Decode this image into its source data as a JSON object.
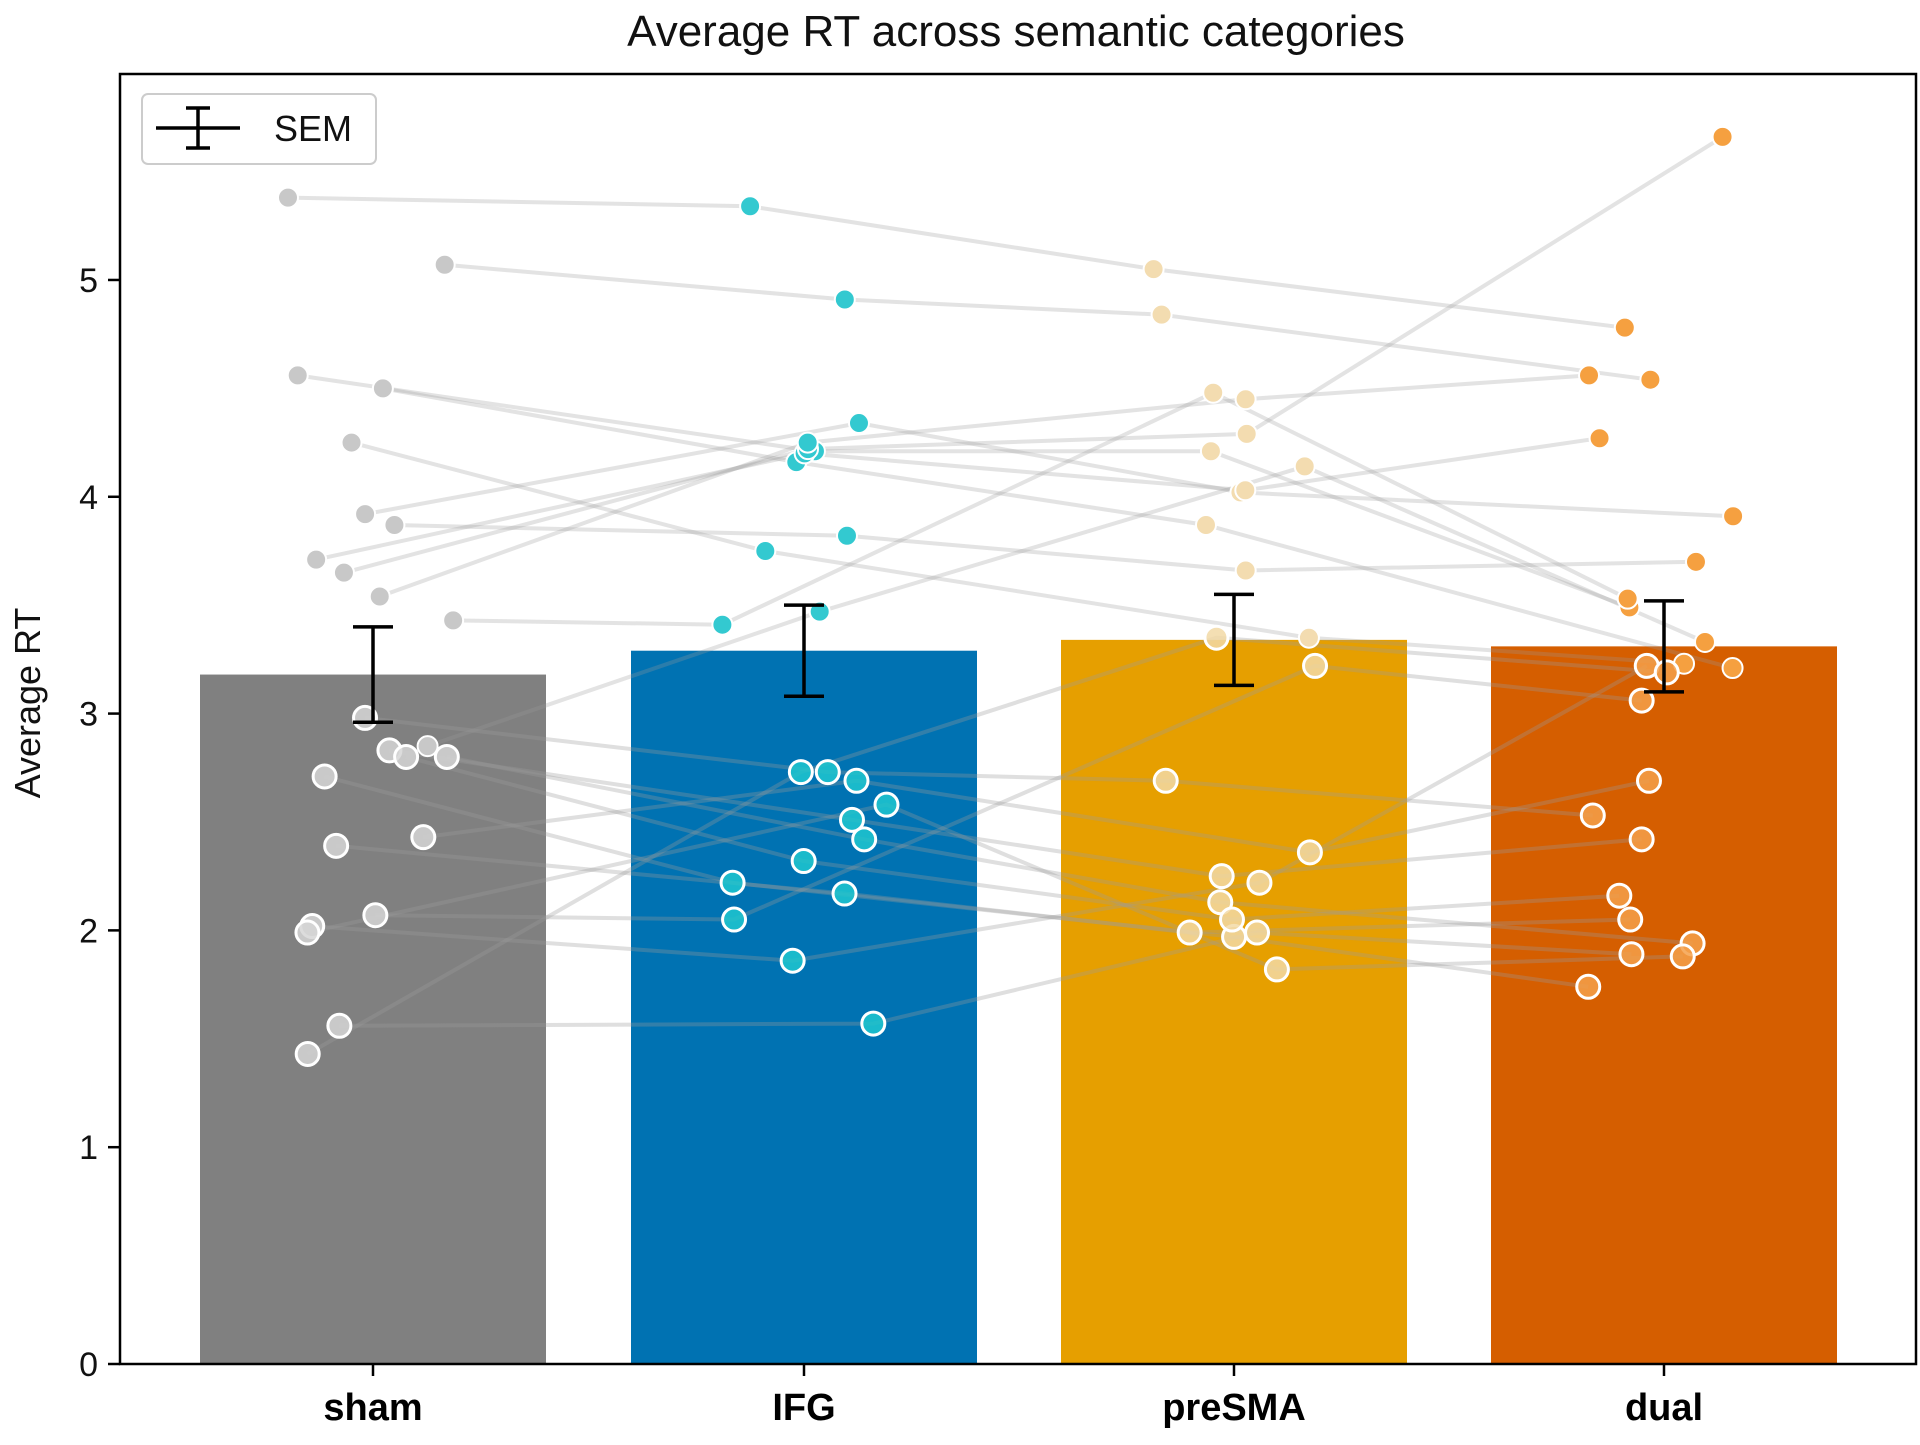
{
  "chart_data": {
    "type": "bar",
    "title": "Average RT across semantic categories",
    "xlabel": "",
    "ylabel": "Average RT",
    "ylim": [
      0,
      5.95
    ],
    "yticks": [
      "0",
      "1",
      "2",
      "3",
      "4",
      "5"
    ],
    "grid": false,
    "legend": {
      "position": "top-left",
      "entries": [
        "SEM"
      ]
    },
    "categories": [
      "sham",
      "IFG",
      "preSMA",
      "dual"
    ],
    "values": [
      3.18,
      3.29,
      3.34,
      3.31
    ],
    "sem": [
      0.22,
      0.21,
      0.21,
      0.21
    ],
    "colors": {
      "bars": [
        "#808080",
        "#0072b2",
        "#e69f00",
        "#d55e00"
      ],
      "dark_points": [
        "#d6d6d6",
        "#1fc7cf",
        "#f2d9a6",
        "#f5a04a"
      ],
      "light_points": [
        "#c8c8c8",
        "#33c9d0",
        "#f3dcb0",
        "#f5a040"
      ],
      "connectors": "#9a9a9a",
      "error_bars": "#000000"
    },
    "subjects": {
      "high": [
        [
          5.38,
          5.34,
          5.05,
          4.78
        ],
        [
          5.07,
          4.91,
          4.84,
          4.54
        ],
        [
          4.56,
          4.21,
          4.21,
          3.49
        ],
        [
          4.5,
          4.16,
          3.87,
          3.21
        ],
        [
          4.25,
          3.75,
          3.35,
          3.23
        ],
        [
          3.92,
          4.34,
          4.02,
          3.91
        ],
        [
          3.87,
          3.82,
          3.66,
          3.7
        ],
        [
          3.71,
          4.2,
          4.03,
          4.27
        ],
        [
          3.65,
          4.22,
          4.29,
          5.66
        ],
        [
          3.54,
          4.25,
          4.45,
          4.56
        ],
        [
          3.43,
          3.41,
          4.48,
          3.53
        ],
        [
          2.85,
          3.47,
          4.14,
          3.33
        ]
      ],
      "low": [
        [
          2.83,
          2.51,
          2.25,
          2.42
        ],
        [
          2.8,
          2.42,
          2.13,
          1.94
        ],
        [
          2.98,
          2.73,
          2.69,
          2.53
        ],
        [
          2.71,
          2.22,
          1.97,
          1.74
        ],
        [
          2.8,
          2.32,
          2.05,
          2.16
        ],
        [
          2.43,
          2.69,
          2.36,
          2.69
        ],
        [
          2.39,
          2.17,
          1.99,
          2.05
        ],
        [
          2.07,
          2.05,
          3.22,
          3.06
        ],
        [
          2.02,
          1.86,
          2.22,
          3.22
        ],
        [
          1.99,
          2.58,
          1.82,
          1.88
        ],
        [
          1.56,
          1.57,
          1.99,
          1.89
        ],
        [
          1.43,
          2.73,
          3.35,
          3.19
        ]
      ]
    }
  }
}
